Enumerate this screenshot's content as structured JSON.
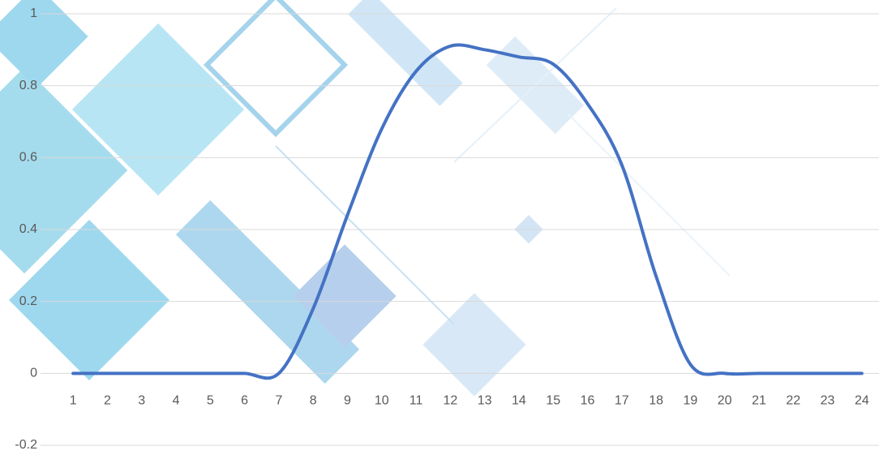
{
  "chart_data": {
    "type": "line",
    "categories": [
      1,
      2,
      3,
      4,
      5,
      6,
      7,
      8,
      9,
      10,
      11,
      12,
      13,
      14,
      15,
      16,
      17,
      18,
      19,
      20,
      21,
      22,
      23,
      24
    ],
    "series": [
      {
        "color": "#4472c4",
        "values": [
          0,
          0,
          0,
          0,
          0,
          0,
          0,
          0.18,
          0.44,
          0.68,
          0.84,
          0.91,
          0.9,
          0.88,
          0.86,
          0.75,
          0.58,
          0.27,
          0.025,
          0,
          0,
          0,
          0,
          0
        ]
      }
    ],
    "ylim": [
      -0.2,
      1
    ],
    "yticks": [
      -0.2,
      0,
      0.2,
      0.4,
      0.6,
      0.8,
      1
    ],
    "grid": true
  }
}
